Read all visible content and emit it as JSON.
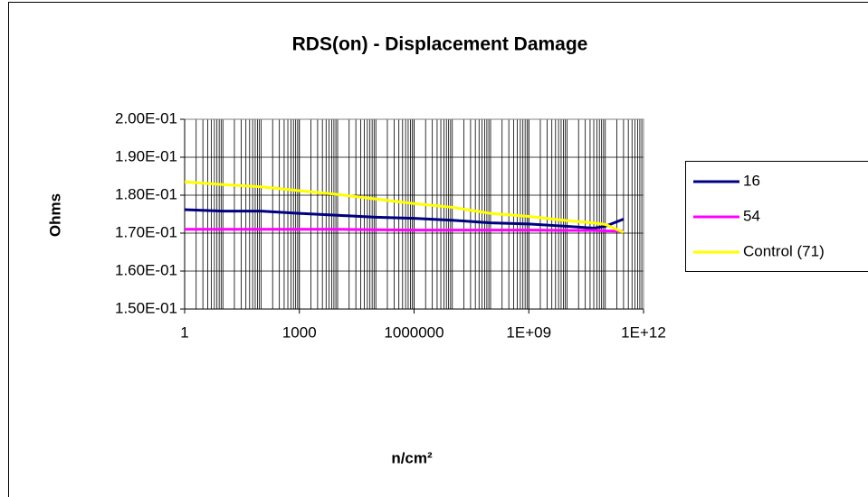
{
  "chart_data": {
    "type": "line",
    "title": "RDS(on) - Displacement Damage",
    "x_label": "n/cm²",
    "y_label": "Ohms",
    "xscale": "log",
    "minor_grid": true,
    "grid": true,
    "legend": "right",
    "x": [
      1,
      10,
      100,
      1000,
      10000,
      100000,
      1000000,
      10000000,
      100000000,
      1000000000,
      10000000000,
      50000000000,
      100000000000,
      300000000000
    ],
    "series": [
      {
        "name": "16",
        "color": "#000080",
        "values": [
          0.1762,
          0.1758,
          0.1758,
          0.1752,
          0.1747,
          0.1742,
          0.1739,
          0.1734,
          0.1727,
          0.1724,
          0.1718,
          0.1713,
          0.1718,
          0.1737
        ]
      },
      {
        "name": "54",
        "color": "#ff00ff",
        "values": [
          0.171,
          0.171,
          0.171,
          0.171,
          0.171,
          0.1709,
          0.1708,
          0.1708,
          0.1708,
          0.1708,
          0.1707,
          0.1707,
          0.1706,
          0.1705
        ]
      },
      {
        "name": "Control (71)",
        "color": "#ffff00",
        "values": [
          0.1835,
          0.1828,
          0.1822,
          0.1812,
          0.1802,
          0.179,
          0.1778,
          0.1768,
          0.1752,
          0.1744,
          0.1733,
          0.1727,
          0.1723,
          0.1702
        ]
      }
    ],
    "xlim": [
      1,
      1000000000000
    ],
    "xticks": [
      1,
      1000,
      1000000,
      {
        "value": 1000000000,
        "label": "1E+09"
      },
      {
        "value": 1000000000000,
        "label": "1E+12"
      }
    ],
    "ylim": [
      0.15,
      0.2
    ],
    "yticks": [
      {
        "value": 0.15,
        "label": "1.50E-01"
      },
      {
        "value": 0.16,
        "label": "1.60E-01"
      },
      {
        "value": 0.17,
        "label": "1.70E-01"
      },
      {
        "value": 0.18,
        "label": "1.80E-01"
      },
      {
        "value": 0.19,
        "label": "1.90E-01"
      },
      {
        "value": 0.2,
        "label": "2.00E-01"
      }
    ]
  }
}
